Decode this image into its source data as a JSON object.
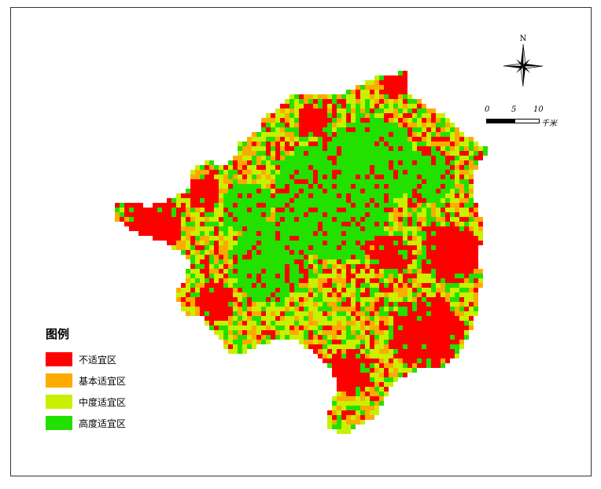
{
  "map": {
    "colors": {
      "unsuitable": "#ff0000",
      "basic": "#ffaa00",
      "moderate": "#c8f000",
      "high": "#22e000"
    }
  },
  "north_arrow": {
    "label": "N",
    "icon": "compass-rose-icon"
  },
  "scale_bar": {
    "ticks": [
      "0",
      "5",
      "10"
    ],
    "unit": "千米"
  },
  "legend": {
    "title": "图例",
    "items": [
      {
        "label": "不适宜区",
        "color": "#ff0000"
      },
      {
        "label": "基本适宜区",
        "color": "#ffaa00"
      },
      {
        "label": "中度适宜区",
        "color": "#c8f000"
      },
      {
        "label": "高度适宜区",
        "color": "#22e000"
      }
    ]
  }
}
